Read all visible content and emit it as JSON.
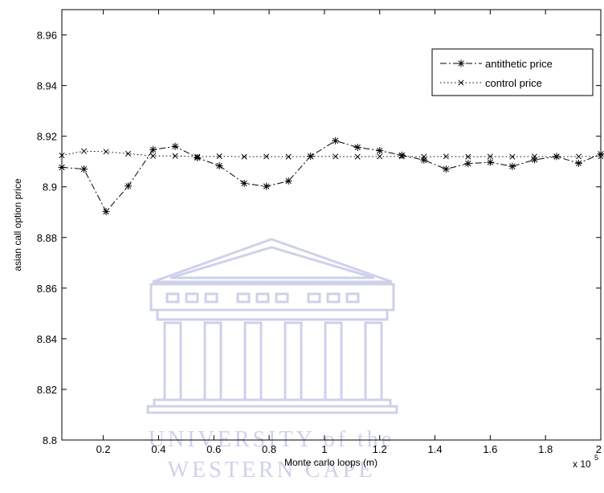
{
  "chart_data": {
    "type": "line",
    "xlabel": "Monte carlo loops (m)",
    "ylabel": "asian call option price",
    "x_multiplier_label": "x 10",
    "x_multiplier_exponent": "5",
    "xlim": [
      0.05,
      2.0
    ],
    "ylim": [
      8.8,
      8.97
    ],
    "xticks": [
      "0.2",
      "0.4",
      "0.6",
      "0.8",
      "1",
      "1.2",
      "1.4",
      "1.6",
      "1.8",
      "2"
    ],
    "yticks": [
      "8.8",
      "8.82",
      "8.84",
      "8.86",
      "8.88",
      "8.9",
      "8.92",
      "8.94",
      "8.96"
    ],
    "legend_position": "top-right",
    "grid": false,
    "series": [
      {
        "name": "antithetic price",
        "color": "#000000",
        "line_style": "dash-dot",
        "marker": "asterisk",
        "x": [
          0.05,
          0.13,
          0.21,
          0.29,
          0.38,
          0.46,
          0.54,
          0.62,
          0.71,
          0.79,
          0.87,
          0.95,
          1.04,
          1.12,
          1.2,
          1.28,
          1.36,
          1.44,
          1.52,
          1.6,
          1.68,
          1.76,
          1.84,
          1.92,
          2.0
        ],
        "values": [
          8.9077,
          8.907,
          8.8902,
          8.9003,
          8.9147,
          8.916,
          8.9115,
          8.9083,
          8.9014,
          8.9002,
          8.9023,
          8.9121,
          8.9182,
          8.9156,
          8.9143,
          8.9125,
          8.9106,
          8.907,
          8.9092,
          8.9097,
          8.9081,
          8.9107,
          8.912,
          8.9093,
          8.913
        ]
      },
      {
        "name": "control price",
        "color": "#000000",
        "line_style": "dotted",
        "marker": "x",
        "x": [
          0.05,
          0.13,
          0.21,
          0.29,
          0.38,
          0.46,
          0.54,
          0.62,
          0.71,
          0.79,
          0.87,
          0.95,
          1.04,
          1.12,
          1.2,
          1.28,
          1.36,
          1.44,
          1.52,
          1.6,
          1.68,
          1.76,
          1.84,
          1.92,
          2.0
        ],
        "values": [
          8.9124,
          8.9141,
          8.9139,
          8.9131,
          8.9122,
          8.9122,
          8.9119,
          8.9121,
          8.9119,
          8.912,
          8.9119,
          8.912,
          8.912,
          8.9119,
          8.912,
          8.912,
          8.9119,
          8.912,
          8.9119,
          8.912,
          8.9119,
          8.912,
          8.9119,
          8.912,
          8.912
        ]
      }
    ]
  },
  "watermark": {
    "line1": "UNIVERSITY of the",
    "line2": "WESTERN CAPE"
  }
}
